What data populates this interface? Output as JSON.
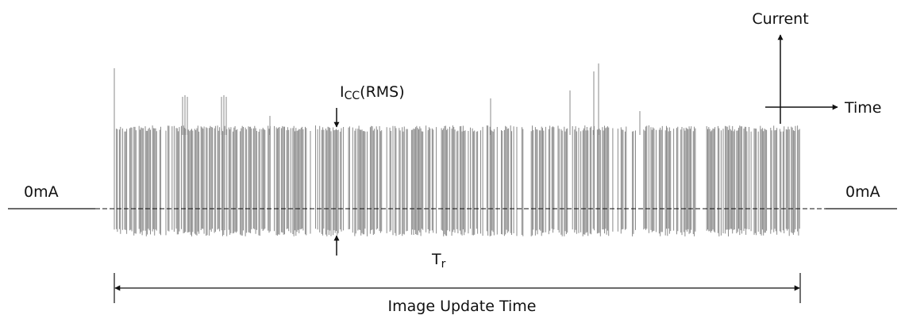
{
  "labels": {
    "zero_left": "0mA",
    "zero_right": "0mA",
    "icc_main": "I",
    "icc_sub": "CC",
    "icc_suffix": "(RMS)",
    "tr_main": "T",
    "tr_sub": "r",
    "image_update_time": "Image Update Time",
    "axis_current": "Current",
    "axis_time": "Time"
  },
  "colors": {
    "waveform": "#8a8a8a",
    "line": "#111111"
  }
}
